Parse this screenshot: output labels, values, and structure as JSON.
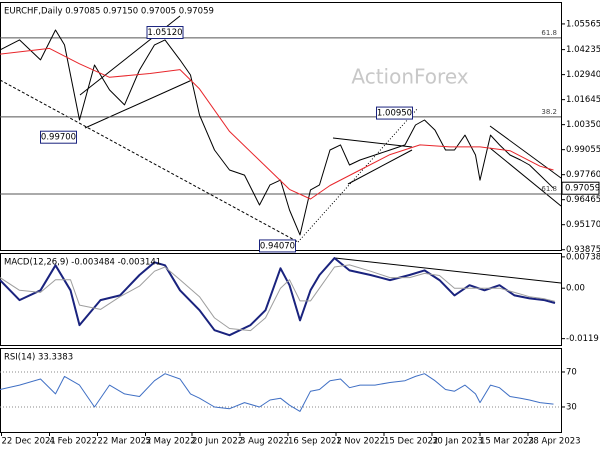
{
  "chart_data": [
    {
      "type": "line",
      "title": "EURCHF,Daily  0.97085 0.97150 0.97005 0.97059",
      "watermark": "ActionForex",
      "xlim": [
        0,
        374
      ],
      "ylim": [
        0.9386,
        1.067
      ],
      "yticks": [
        1.05565,
        1.04235,
        {
          "value": 1.0294,
          "label": "1.02940"
        },
        1.01645,
        {
          "value": 1.0035,
          "label": "1.00350"
        },
        0.99055,
        {
          "value": 0.9776,
          "label": "0.97760"
        },
        0.96465,
        {
          "value": 0.9517,
          "label": "0.95170"
        },
        0.93875
      ],
      "series": [
        {
          "color": "#000000",
          "x": [
            0,
            13,
            27,
            37,
            43,
            53,
            63,
            73,
            83,
            93,
            103,
            110,
            120,
            127,
            133,
            143,
            153,
            163,
            173,
            180,
            187,
            193,
            200,
            207,
            213,
            220,
            227,
            233,
            240,
            250,
            260,
            270,
            277,
            283,
            290,
            297,
            303,
            310,
            317,
            320,
            327,
            333,
            340,
            347,
            353,
            360,
            369
          ],
          "values": [
            1.0422,
            1.0474,
            1.037,
            1.0525,
            1.0448,
            1.0059,
            1.0344,
            1.0215,
            1.0137,
            1.0318,
            1.0448,
            1.0474,
            1.037,
            1.0292,
            1.0085,
            0.9904,
            0.98,
            0.9774,
            0.9619,
            0.9723,
            0.9748,
            0.9593,
            0.9464,
            0.9697,
            0.9723,
            0.9904,
            0.993,
            0.9826,
            0.9852,
            0.9878,
            0.9904,
            0.993,
            1.0033,
            1.0059,
            1.0007,
            0.9904,
            0.9904,
            0.9981,
            0.9878,
            0.9748,
            0.9981,
            0.993,
            0.9878,
            0.9852,
            0.9826,
            0.9774,
            0.97059
          ]
        },
        {
          "color": "#e8262b",
          "x": [
            0,
            33,
            53,
            73,
            100,
            120,
            133,
            153,
            173,
            193,
            207,
            220,
            240,
            260,
            280,
            300,
            320,
            340,
            360,
            369
          ],
          "values": [
            1.04,
            1.043,
            1.035,
            1.028,
            1.03,
            1.032,
            1.022,
            1.0,
            0.985,
            0.97,
            0.965,
            0.972,
            0.98,
            0.988,
            0.993,
            0.992,
            0.992,
            0.99,
            0.982,
            0.98
          ]
        }
      ],
      "levels": [
        {
          "value": 1.0484,
          "label": "61.8"
        },
        {
          "value": 1.0075,
          "label": "38.2"
        },
        {
          "value": 0.9676,
          "label": "61.8"
        }
      ],
      "annotations": [
        {
          "x": 110,
          "value": 1.0512,
          "label": "1.05120"
        },
        {
          "x": 39,
          "value": 0.997,
          "label": "0.99700"
        },
        {
          "x": 263,
          "value": 1.0095,
          "label": "1.00950"
        },
        {
          "x": 185,
          "value": 0.9407,
          "label": "0.94070"
        }
      ],
      "price_tag": {
        "value": 0.97059,
        "label": "0.97059"
      }
    },
    {
      "type": "line",
      "title": "MACD(12,26,9) -0.003484 -0.003141",
      "xlim": [
        0,
        374
      ],
      "ylim": [
        -0.0134,
        0.0083
      ],
      "yticks": [
        0.007384,
        {
          "value": 0,
          "label": "0.00"
        },
        -0.0119
      ],
      "series": [
        {
          "color": "#1a237e",
          "width": 2,
          "x": [
            0,
            13,
            27,
            37,
            47,
            53,
            67,
            80,
            93,
            103,
            110,
            120,
            133,
            143,
            153,
            167,
            177,
            187,
            193,
            200,
            207,
            213,
            223,
            233,
            247,
            260,
            273,
            283,
            293,
            303,
            313,
            323,
            333,
            343,
            353,
            363,
            370
          ],
          "values": [
            0.0019,
            -0.0028,
            -0.0005,
            0.0054,
            -0.0005,
            -0.0087,
            -0.0028,
            -0.0017,
            0.0031,
            0.0061,
            0.0054,
            -0.0005,
            -0.0052,
            -0.0099,
            -0.0111,
            -0.0087,
            -0.0052,
            0.0047,
            0.0007,
            -0.0076,
            -0.0005,
            0.0031,
            0.0071,
            0.0042,
            0.0031,
            0.0019,
            0.0031,
            0.0042,
            0.0019,
            -0.0017,
            0.0007,
            -0.0005,
            0.0007,
            -0.0017,
            -0.0024,
            -0.0028,
            -0.0035
          ]
        },
        {
          "color": "#9e9e9e",
          "width": 1,
          "x": [
            0,
            13,
            27,
            37,
            47,
            53,
            67,
            80,
            93,
            103,
            110,
            120,
            133,
            143,
            153,
            167,
            177,
            187,
            193,
            200,
            207,
            213,
            223,
            233,
            247,
            260,
            273,
            283,
            293,
            303,
            313,
            323,
            333,
            343,
            353,
            363,
            370
          ],
          "values": [
            0.0025,
            -0.0005,
            -0.001,
            0.002,
            0.002,
            -0.004,
            -0.005,
            -0.002,
            0.0005,
            0.004,
            0.005,
            0.002,
            -0.002,
            -0.007,
            -0.0095,
            -0.01,
            -0.007,
            0.0,
            0.002,
            -0.003,
            -0.003,
            0.0,
            0.005,
            0.0055,
            0.004,
            0.0025,
            0.0025,
            0.0035,
            0.003,
            0.0,
            0.0,
            0.0,
            0.0,
            -0.001,
            -0.002,
            -0.0025,
            -0.0031
          ]
        }
      ]
    },
    {
      "type": "line",
      "title": "RSI(14) 33.3383",
      "xlim": [
        0,
        374
      ],
      "ylim": [
        1.4,
        97.4
      ],
      "yticks": [
        70,
        30
      ],
      "grid": true,
      "series": [
        {
          "color": "#3f6fc4",
          "width": 1,
          "x": [
            0,
            13,
            27,
            37,
            43,
            53,
            63,
            73,
            83,
            93,
            103,
            110,
            120,
            127,
            133,
            143,
            153,
            163,
            173,
            180,
            187,
            193,
            200,
            207,
            213,
            220,
            227,
            233,
            240,
            250,
            260,
            270,
            277,
            283,
            290,
            297,
            303,
            310,
            317,
            320,
            327,
            333,
            340,
            347,
            353,
            360,
            369
          ],
          "values": [
            50,
            55,
            62,
            45,
            65,
            55,
            30,
            55,
            45,
            42,
            60,
            68,
            62,
            45,
            40,
            30,
            28,
            35,
            30,
            38,
            40,
            32,
            25,
            48,
            50,
            60,
            62,
            52,
            55,
            55,
            58,
            60,
            65,
            68,
            60,
            50,
            48,
            55,
            45,
            35,
            55,
            52,
            42,
            40,
            38,
            35,
            33.3383
          ]
        }
      ],
      "xticks": [
        {
          "value": 1,
          "label": "22 Dec 2021"
        },
        {
          "value": 33,
          "label": "4 Feb 2022"
        },
        {
          "value": 65,
          "label": "22 Mar 2022"
        },
        {
          "value": 97,
          "label": "5 May 2022"
        },
        {
          "value": 128,
          "label": "20 Jun 2022"
        },
        {
          "value": 160,
          "label": "3 Aug 2022"
        },
        {
          "value": 192,
          "label": "16 Sep 2022"
        },
        {
          "value": 224,
          "label": "1 Nov 2022"
        },
        {
          "value": 256,
          "label": "15 Dec 2022"
        },
        {
          "value": 288,
          "label": "30 Jan 2023"
        },
        {
          "value": 320,
          "label": "15 Mar 2023"
        },
        {
          "value": 352,
          "label": "28 Apr 2023"
        }
      ]
    }
  ]
}
